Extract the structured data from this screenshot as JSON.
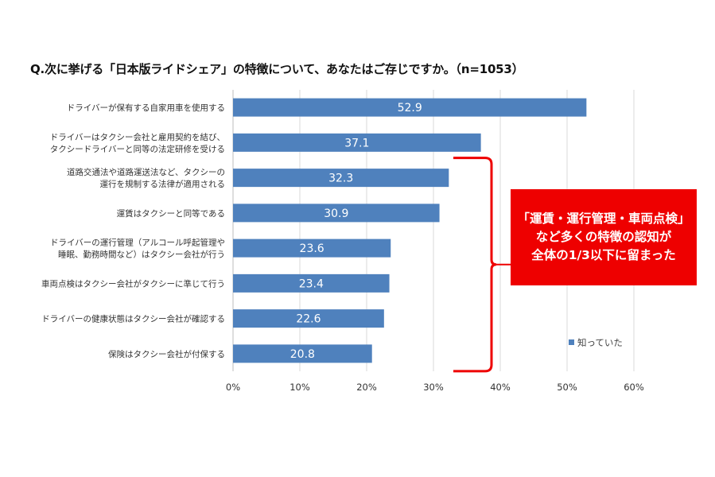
{
  "chart_data": {
    "type": "bar",
    "orientation": "horizontal",
    "title": "Q.次に挙げる「日本版ライドシェア」の特徴について、あなたはご存じですか。（n=1053）",
    "categories": [
      [
        "ドライバーが保有する自家用車を使用する"
      ],
      [
        "ドライバーはタクシー会社と雇用契約を結び、",
        "タクシードライバーと同等の法定研修を受ける"
      ],
      [
        "道路交通法や道路運送法など、タクシーの",
        "運行を規制する法律が適用される"
      ],
      [
        "運賃はタクシーと同等である"
      ],
      [
        "ドライバーの運行管理（アルコール呼起管理や",
        "睡眠、勤務時間など）はタクシー会社が行う"
      ],
      [
        "車両点検はタクシー会社がタクシーに準じて行う"
      ],
      [
        "ドライバーの健康状態はタクシー会社が確認する"
      ],
      [
        "保険はタクシー会社が付保する"
      ]
    ],
    "series": [
      {
        "name": "知っていた",
        "values": [
          52.9,
          37.1,
          32.3,
          30.9,
          23.6,
          23.4,
          22.6,
          20.8
        ],
        "color": "#4f81bd"
      }
    ],
    "xlim": [
      0,
      60
    ],
    "ticks": [
      0,
      10,
      20,
      30,
      40,
      50,
      60
    ],
    "tick_labels": [
      "0%",
      "10%",
      "20%",
      "30%",
      "40%",
      "50%",
      "60%"
    ],
    "grid": true,
    "legend": "right",
    "bracket_range": [
      2,
      7
    ],
    "bracket_color": "#ee0000"
  },
  "callout": {
    "lines": [
      "「運賃・運行管理・車両点検」",
      "など多くの特徴の認知が",
      "全体の1/3以下に留まった"
    ],
    "color": "#ee0000"
  }
}
